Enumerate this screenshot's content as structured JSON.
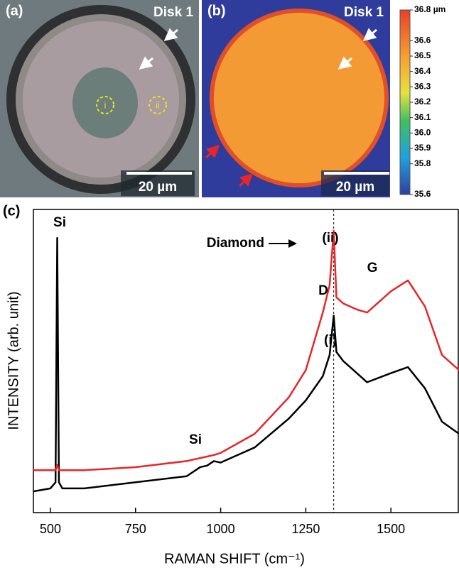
{
  "panels": {
    "a": {
      "label": "(a)",
      "disk": "Disk 1",
      "scalebar": "20 µm",
      "spots": [
        "i",
        "ii"
      ]
    },
    "b": {
      "label": "(b)",
      "disk": "Disk 1",
      "scalebar": "20 µm"
    }
  },
  "colorbar": {
    "lim": [
      35.6,
      36.8
    ],
    "ticks": [
      {
        "value": 36.8,
        "label": "36.8 µm"
      },
      36.6,
      36.5,
      36.4,
      36.3,
      36.2,
      36.1,
      {
        "value": 36,
        "label": "36.0"
      },
      35.9,
      35.8,
      35.6
    ]
  },
  "chart_data": {
    "type": "line",
    "panel_label": "(c)",
    "xlabel": "RAMAN SHIFT (cm⁻¹)",
    "ylabel": "INTENSITY (arb. unit)",
    "xlim": [
      450,
      1700
    ],
    "ylim": [
      0,
      100
    ],
    "xticks": [
      500,
      750,
      1000,
      1250,
      1500
    ],
    "vline": 1332,
    "x": [
      450,
      500,
      515,
      520,
      525,
      535,
      600,
      750,
      900,
      940,
      960,
      980,
      1000,
      1100,
      1200,
      1250,
      1300,
      1320,
      1332,
      1340,
      1360,
      1400,
      1430,
      1500,
      1550,
      1600,
      1650,
      1700
    ],
    "series": [
      {
        "name": "(i)",
        "color": "#000000",
        "values": [
          7,
          8,
          10,
          90.6,
          10,
          8,
          8,
          10,
          12,
          15,
          15.5,
          17,
          16.5,
          21.5,
          31,
          37,
          45,
          52,
          65,
          53,
          50,
          46,
          43,
          46,
          48,
          41,
          30,
          26
        ]
      },
      {
        "name": "(ii)",
        "color": "#e8262a",
        "values": [
          14,
          14,
          14,
          15.7,
          14,
          14,
          14,
          15,
          17,
          18,
          18.5,
          19,
          19.7,
          26,
          38,
          47,
          66,
          75,
          93,
          71,
          69,
          67,
          66,
          73,
          76.6,
          68,
          52,
          47
        ]
      }
    ],
    "annotations": [
      "Si",
      "Si",
      "Diamond",
      "D",
      "G"
    ]
  }
}
